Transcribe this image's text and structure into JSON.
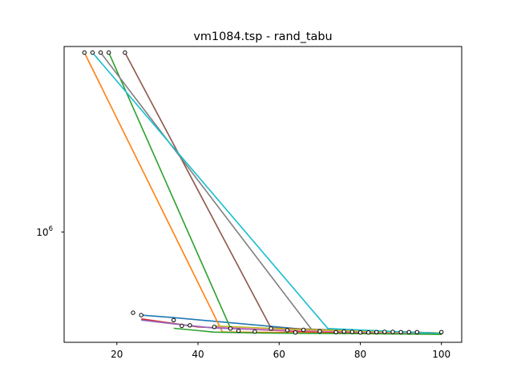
{
  "chart_data": {
    "type": "line",
    "title": "vm1084.tsp - rand_tabu",
    "xlabel": "",
    "ylabel": "",
    "x_ticks": [
      "20",
      "40",
      "60",
      "80",
      "100"
    ],
    "x_tick_values": [
      20,
      40,
      60,
      80,
      100
    ],
    "y_scale": "log",
    "y_tick_label": "10",
    "y_tick_exponent": "6",
    "y_tick_value": 1000000,
    "xlim": [
      7,
      105
    ],
    "ylim": [
      420000,
      4300000
    ],
    "grid": false,
    "series": [
      {
        "color": "#1f77b4",
        "x": [
          26,
          34,
          70,
          100
        ],
        "y": [
          520000,
          510000,
          460000,
          448000
        ]
      },
      {
        "color": "#ff7f0e",
        "x": [
          12,
          46,
          100
        ],
        "y": [
          4100000,
          456000,
          448000
        ]
      },
      {
        "color": "#2ca02c",
        "x": [
          18,
          48,
          100
        ],
        "y": [
          4100000,
          470000,
          450000
        ]
      },
      {
        "color": "#d62728",
        "x": [
          26,
          40,
          64,
          100
        ],
        "y": [
          505000,
          474000,
          458000,
          449000
        ]
      },
      {
        "color": "#9467bd",
        "x": [
          26,
          36,
          44,
          60,
          100
        ],
        "y": [
          500000,
          482000,
          470000,
          462000,
          450000
        ]
      },
      {
        "color": "#8c564b",
        "x": [
          22,
          58,
          100
        ],
        "y": [
          4100000,
          470000,
          452000
        ]
      },
      {
        "color": "#e377c2",
        "x": [
          44,
          62,
          100
        ],
        "y": [
          475000,
          462000,
          450000
        ]
      },
      {
        "color": "#7f7f7f",
        "x": [
          16,
          68,
          100
        ],
        "y": [
          4100000,
          465000,
          452000
        ]
      },
      {
        "color": "#bcbd22",
        "x": [
          44,
          64,
          100
        ],
        "y": [
          478000,
          465000,
          451000
        ]
      },
      {
        "color": "#17becf",
        "x": [
          14,
          72,
          100
        ],
        "y": [
          4100000,
          468000,
          450000
        ]
      },
      {
        "color": "#2ca02c",
        "x": [
          34,
          44,
          56,
          76,
          100
        ],
        "y": [
          469000,
          455000,
          452000,
          450000,
          447000
        ]
      }
    ],
    "markers": {
      "x": [
        12,
        14,
        16,
        18,
        22,
        24,
        26,
        34,
        36,
        38,
        44,
        48,
        50,
        54,
        58,
        62,
        64,
        66,
        70,
        74,
        76,
        78,
        80,
        82,
        84,
        86,
        88,
        90,
        92,
        94,
        100
      ],
      "y": [
        4100000,
        4100000,
        4100000,
        4100000,
        4100000,
        530000,
        520000,
        500000,
        478000,
        480000,
        474000,
        468000,
        460000,
        457000,
        468000,
        462000,
        454000,
        463000,
        458000,
        455000,
        457000,
        456000,
        454000,
        454000,
        455000,
        456000,
        456000,
        455000,
        455000,
        455000,
        455000
      ]
    }
  }
}
